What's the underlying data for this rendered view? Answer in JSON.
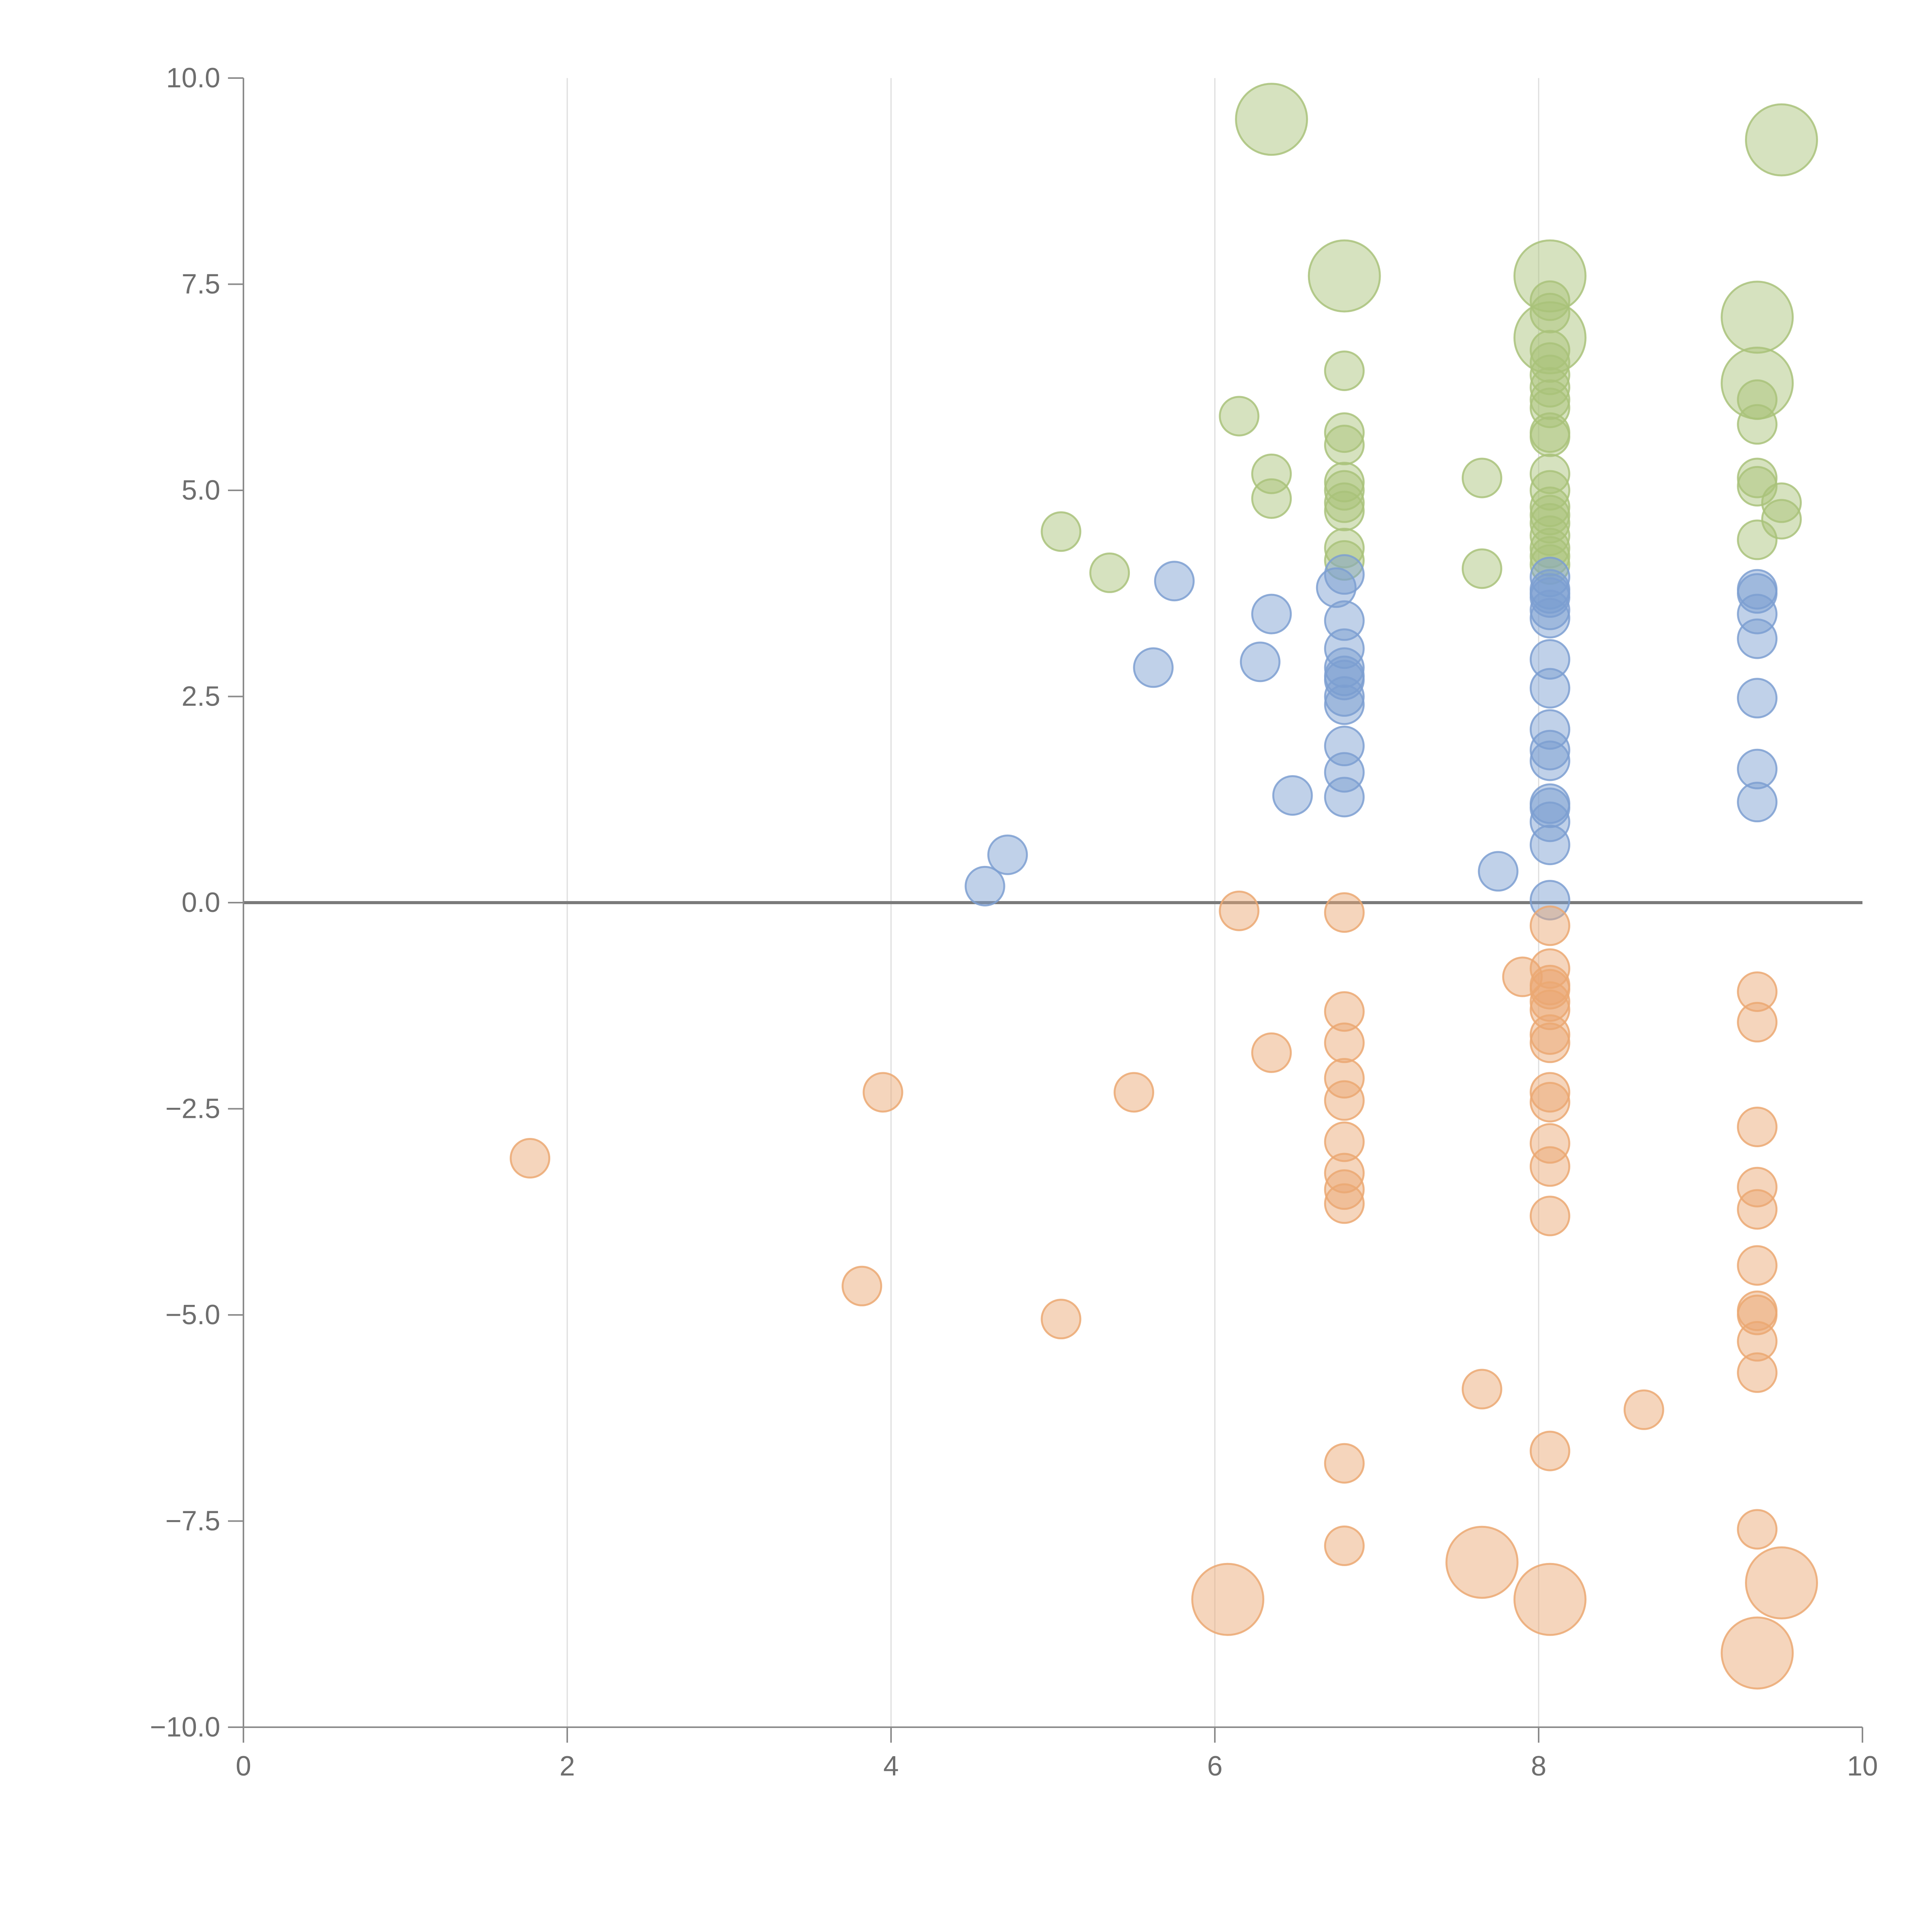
{
  "chart_data": {
    "type": "scatter",
    "title": "",
    "xlabel": "",
    "ylabel": "",
    "xlim": [
      0,
      10
    ],
    "ylim": [
      -10,
      10
    ],
    "x_ticks": [
      {
        "value": 0,
        "label": "0"
      },
      {
        "value": 2,
        "label": "2"
      },
      {
        "value": 4,
        "label": "4"
      },
      {
        "value": 6,
        "label": "6"
      },
      {
        "value": 8,
        "label": "8"
      },
      {
        "value": 10,
        "label": "10"
      }
    ],
    "y_ticks": [
      {
        "value": 10,
        "label": "10.0"
      },
      {
        "value": 7.5,
        "label": "7.5"
      },
      {
        "value": 5,
        "label": "5.0"
      },
      {
        "value": 2.5,
        "label": "2.5"
      },
      {
        "value": 0,
        "label": "0.0"
      },
      {
        "value": -2.5,
        "label": "−2.5"
      },
      {
        "value": -5,
        "label": "−5.0"
      },
      {
        "value": -7.5,
        "label": "−7.5"
      },
      {
        "value": -10,
        "label": "−10.0"
      }
    ],
    "vertical_gridlines": [
      2,
      4,
      6,
      8
    ],
    "zero_line": 0,
    "series": [
      {
        "color": "#a9c27a",
        "points": [
          [
            6.35,
            9.5,
            2
          ],
          [
            9.5,
            9.25,
            2
          ],
          [
            6.8,
            7.6,
            2
          ],
          [
            8.07,
            7.6,
            2
          ],
          [
            9.35,
            7.1,
            2
          ],
          [
            8.07,
            6.85,
            2
          ],
          [
            9.35,
            6.3,
            2
          ],
          [
            8.07,
            7.3,
            1
          ],
          [
            8.07,
            7.15,
            1
          ],
          [
            8.07,
            6.7,
            1
          ],
          [
            8.07,
            6.55,
            1
          ],
          [
            8.07,
            6.4,
            1
          ],
          [
            8.07,
            6.25,
            1
          ],
          [
            8.07,
            6.1,
            1
          ],
          [
            8.07,
            6.0,
            1
          ],
          [
            8.07,
            5.7,
            1
          ],
          [
            8.07,
            5.65,
            1
          ],
          [
            8.07,
            5.2,
            1
          ],
          [
            8.07,
            5.0,
            1
          ],
          [
            8.07,
            4.8,
            1
          ],
          [
            8.07,
            4.7,
            1
          ],
          [
            8.07,
            4.6,
            1
          ],
          [
            8.07,
            4.45,
            1
          ],
          [
            8.07,
            4.3,
            1
          ],
          [
            8.07,
            4.2,
            1
          ],
          [
            8.07,
            4.1,
            1
          ],
          [
            6.8,
            6.45,
            1
          ],
          [
            6.8,
            5.7,
            1
          ],
          [
            6.8,
            5.55,
            1
          ],
          [
            6.8,
            5.1,
            1
          ],
          [
            6.8,
            5.0,
            1
          ],
          [
            6.8,
            4.85,
            1
          ],
          [
            6.8,
            4.75,
            1
          ],
          [
            6.8,
            4.3,
            1
          ],
          [
            6.8,
            4.15,
            1
          ],
          [
            6.15,
            5.9,
            1
          ],
          [
            6.35,
            5.2,
            1
          ],
          [
            6.35,
            4.9,
            1
          ],
          [
            5.05,
            4.5,
            1
          ],
          [
            5.35,
            4.0,
            1
          ],
          [
            7.65,
            5.15,
            1
          ],
          [
            7.65,
            4.05,
            1
          ],
          [
            9.35,
            6.1,
            1
          ],
          [
            9.35,
            5.8,
            1
          ],
          [
            9.35,
            5.15,
            1
          ],
          [
            9.35,
            5.05,
            1
          ],
          [
            9.35,
            4.4,
            1
          ],
          [
            9.5,
            4.85,
            1
          ],
          [
            9.5,
            4.65,
            1
          ]
        ]
      },
      {
        "color": "#7c9fd1",
        "points": [
          [
            5.75,
            3.9,
            1
          ],
          [
            5.62,
            2.85,
            1
          ],
          [
            6.35,
            3.5,
            1
          ],
          [
            6.28,
            2.92,
            1
          ],
          [
            6.48,
            1.3,
            1
          ],
          [
            4.72,
            0.58,
            1
          ],
          [
            4.58,
            0.2,
            1
          ],
          [
            7.75,
            0.38,
            1
          ],
          [
            6.75,
            3.82,
            1
          ],
          [
            6.8,
            3.98,
            1
          ],
          [
            6.8,
            3.42,
            1
          ],
          [
            6.8,
            3.08,
            1
          ],
          [
            6.8,
            2.85,
            1
          ],
          [
            6.8,
            2.75,
            1
          ],
          [
            6.8,
            2.7,
            1
          ],
          [
            6.8,
            2.5,
            1
          ],
          [
            6.8,
            2.4,
            1
          ],
          [
            6.8,
            1.9,
            1
          ],
          [
            6.8,
            1.58,
            1
          ],
          [
            6.8,
            1.28,
            1
          ],
          [
            8.07,
            3.95,
            1
          ],
          [
            8.07,
            3.8,
            1
          ],
          [
            8.07,
            3.75,
            1
          ],
          [
            8.07,
            3.7,
            1
          ],
          [
            8.07,
            3.55,
            1
          ],
          [
            8.07,
            3.45,
            1
          ],
          [
            8.07,
            2.95,
            1
          ],
          [
            8.07,
            2.6,
            1
          ],
          [
            8.07,
            2.1,
            1
          ],
          [
            8.07,
            1.85,
            1
          ],
          [
            8.07,
            1.72,
            1
          ],
          [
            8.07,
            1.2,
            1
          ],
          [
            8.07,
            1.15,
            1
          ],
          [
            8.07,
            0.98,
            1
          ],
          [
            8.07,
            0.7,
            1
          ],
          [
            8.07,
            0.03,
            1
          ],
          [
            9.35,
            3.8,
            1
          ],
          [
            9.35,
            3.75,
            1
          ],
          [
            9.35,
            3.5,
            1
          ],
          [
            9.35,
            3.2,
            1
          ],
          [
            9.35,
            2.48,
            1
          ],
          [
            9.35,
            1.62,
            1
          ],
          [
            9.35,
            1.22,
            1
          ]
        ]
      },
      {
        "color": "#eba872",
        "points": [
          [
            6.08,
            -8.45,
            2
          ],
          [
            7.65,
            -8.0,
            2
          ],
          [
            8.07,
            -8.45,
            2
          ],
          [
            9.5,
            -8.25,
            2
          ],
          [
            9.35,
            -9.1,
            2
          ],
          [
            1.77,
            -3.1,
            1
          ],
          [
            3.95,
            -2.3,
            1
          ],
          [
            3.82,
            -4.65,
            1
          ],
          [
            5.05,
            -5.05,
            1
          ],
          [
            5.5,
            -2.3,
            1
          ],
          [
            6.15,
            -0.1,
            1
          ],
          [
            6.35,
            -1.82,
            1
          ],
          [
            7.65,
            -5.9,
            1
          ],
          [
            7.9,
            -0.9,
            1
          ],
          [
            8.65,
            -6.15,
            1
          ],
          [
            6.8,
            -0.12,
            1
          ],
          [
            6.8,
            -1.32,
            1
          ],
          [
            6.8,
            -1.7,
            1
          ],
          [
            6.8,
            -2.13,
            1
          ],
          [
            6.8,
            -2.4,
            1
          ],
          [
            6.8,
            -2.9,
            1
          ],
          [
            6.8,
            -3.28,
            1
          ],
          [
            6.8,
            -3.48,
            1
          ],
          [
            6.8,
            -3.65,
            1
          ],
          [
            6.8,
            -6.8,
            1
          ],
          [
            6.8,
            -7.8,
            1
          ],
          [
            8.07,
            -0.28,
            1
          ],
          [
            8.07,
            -0.8,
            1
          ],
          [
            8.07,
            -1.0,
            1
          ],
          [
            8.07,
            -1.05,
            1
          ],
          [
            8.07,
            -1.2,
            1
          ],
          [
            8.07,
            -1.3,
            1
          ],
          [
            8.07,
            -1.6,
            1
          ],
          [
            8.07,
            -1.7,
            1
          ],
          [
            8.07,
            -2.3,
            1
          ],
          [
            8.07,
            -2.42,
            1
          ],
          [
            8.07,
            -2.92,
            1
          ],
          [
            8.07,
            -3.2,
            1
          ],
          [
            8.07,
            -3.8,
            1
          ],
          [
            8.07,
            -6.65,
            1
          ],
          [
            9.35,
            -1.08,
            1
          ],
          [
            9.35,
            -1.45,
            1
          ],
          [
            9.35,
            -2.72,
            1
          ],
          [
            9.35,
            -3.45,
            1
          ],
          [
            9.35,
            -3.72,
            1
          ],
          [
            9.35,
            -4.4,
            1
          ],
          [
            9.35,
            -4.95,
            1
          ],
          [
            9.35,
            -5.0,
            1
          ],
          [
            9.35,
            -5.32,
            1
          ],
          [
            9.35,
            -5.7,
            1
          ],
          [
            9.35,
            -7.6,
            1
          ]
        ]
      }
    ]
  }
}
